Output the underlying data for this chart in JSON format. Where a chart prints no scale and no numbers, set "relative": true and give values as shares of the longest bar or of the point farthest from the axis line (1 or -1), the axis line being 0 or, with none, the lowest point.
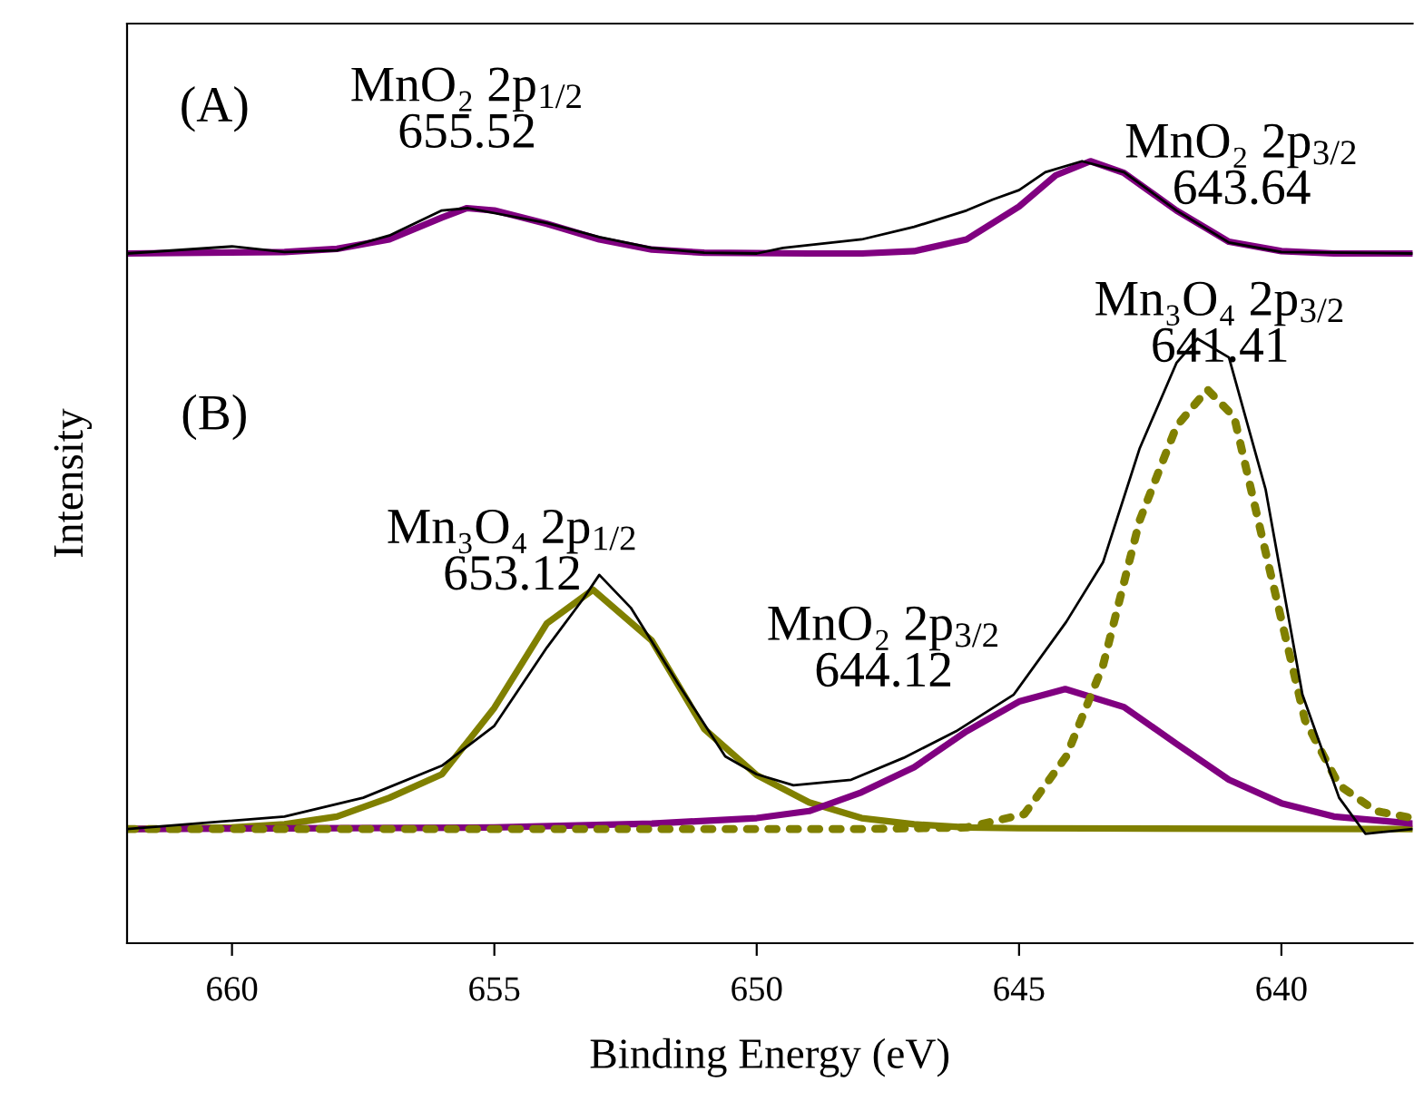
{
  "chart_data": {
    "type": "line",
    "relative": true,
    "xlabel": "Binding Energy (eV)",
    "ylabel": "Intensity",
    "xlim": [
      662,
      637.5
    ],
    "xticks": [
      660,
      655,
      650,
      645,
      640
    ],
    "grid": false,
    "legend": false,
    "annotations": [
      "(A)",
      "(B)",
      {
        "text": "MnO₂ 2p$_{1/2}$\n655.52",
        "x": 655.52,
        "y": 0.94
      },
      {
        "text": "MnO₂ 2p$_{3/2}$\n643.64",
        "x": 643.64,
        "y": 1.0
      },
      {
        "text": "Mn₃O₄ 2p$_{1/2}$\n653.12",
        "x": 653.12,
        "y": 0.452
      },
      {
        "text": "MnO₂ 2p$_{3/2}$\n644.12",
        "x": 644.12,
        "y": 0.325
      },
      {
        "text": "Mn₃O₄ 2p$_{3/2}$\n641.41",
        "x": 641.41,
        "y": 0.708
      }
    ],
    "series": [
      {
        "color": "#000000",
        "line_style": "solid",
        "x": [
          662,
          660,
          659,
          658,
          657,
          656,
          655.5,
          654,
          653,
          652,
          651,
          650,
          649.5,
          648,
          647,
          646,
          645.5,
          645,
          644.5,
          643.8,
          643,
          642,
          641,
          640,
          637.5
        ],
        "values": [
          0.882,
          0.891,
          0.884,
          0.886,
          0.905,
          0.937,
          0.94,
          0.921,
          0.903,
          0.889,
          0.883,
          0.882,
          0.889,
          0.9,
          0.916,
          0.937,
          0.951,
          0.963,
          0.986,
          1.0,
          0.986,
          0.937,
          0.896,
          0.884,
          0.882
        ]
      },
      {
        "color": "#800080",
        "line_style": "solid",
        "x": [
          662,
          659,
          658,
          657,
          656,
          655.52,
          655,
          654,
          653,
          652,
          651,
          649,
          648
        ],
        "values": [
          0.882,
          0.884,
          0.888,
          0.9,
          0.928,
          0.94,
          0.937,
          0.92,
          0.9,
          0.887,
          0.883,
          0.882,
          0.882
        ]
      },
      {
        "color": "#800080",
        "line_style": "solid",
        "x": [
          648.5,
          648,
          647,
          646,
          645,
          644.3,
          643.64,
          643,
          642,
          641,
          640,
          639,
          637.5
        ],
        "values": [
          0.882,
          0.882,
          0.885,
          0.9,
          0.942,
          0.982,
          1.0,
          0.985,
          0.937,
          0.897,
          0.885,
          0.882,
          0.882
        ]
      },
      {
        "color": "#000000",
        "line_style": "solid",
        "x": [
          662,
          659,
          657.5,
          656,
          655,
          654,
          653.3,
          653,
          652.4,
          651.5,
          650.6,
          650,
          649.3,
          648.2,
          647.2,
          646.2,
          645.1,
          644.1,
          643.4,
          642.7,
          642,
          641.6,
          641,
          640.3,
          639.6,
          638.9,
          638.4,
          637.5
        ],
        "values": [
          0.146,
          0.162,
          0.186,
          0.227,
          0.278,
          0.378,
          0.441,
          0.471,
          0.429,
          0.332,
          0.239,
          0.216,
          0.202,
          0.209,
          0.237,
          0.271,
          0.318,
          0.411,
          0.487,
          0.633,
          0.742,
          0.773,
          0.749,
          0.58,
          0.318,
          0.186,
          0.14,
          0.146
        ]
      },
      {
        "color": "#808000",
        "line_style": "solid",
        "x": [
          662,
          660,
          659,
          658,
          657,
          656,
          655,
          654,
          653.12,
          652,
          651,
          650,
          649,
          648,
          647,
          646,
          645,
          637.5
        ],
        "values": [
          0.146,
          0.148,
          0.152,
          0.162,
          0.186,
          0.216,
          0.301,
          0.409,
          0.452,
          0.387,
          0.274,
          0.215,
          0.18,
          0.16,
          0.152,
          0.148,
          0.147,
          0.146
        ]
      },
      {
        "color": "#800080",
        "line_style": "solid",
        "x": [
          662,
          655,
          652,
          650,
          649,
          648,
          647,
          646,
          645,
          644.12,
          643,
          642,
          641,
          640,
          639,
          637.5
        ],
        "values": [
          0.146,
          0.148,
          0.153,
          0.16,
          0.169,
          0.193,
          0.225,
          0.271,
          0.309,
          0.325,
          0.302,
          0.255,
          0.209,
          0.179,
          0.162,
          0.153
        ]
      },
      {
        "color": "#808000",
        "line_style": "dotted",
        "x": [
          662,
          648,
          646,
          644.9,
          644.1,
          643.4,
          642.7,
          642,
          641.41,
          640.9,
          640.2,
          639.55,
          638.9,
          638.2,
          637.5
        ],
        "values": [
          0.146,
          0.146,
          0.148,
          0.165,
          0.239,
          0.355,
          0.541,
          0.661,
          0.708,
          0.673,
          0.471,
          0.285,
          0.202,
          0.169,
          0.16
        ]
      }
    ]
  }
}
